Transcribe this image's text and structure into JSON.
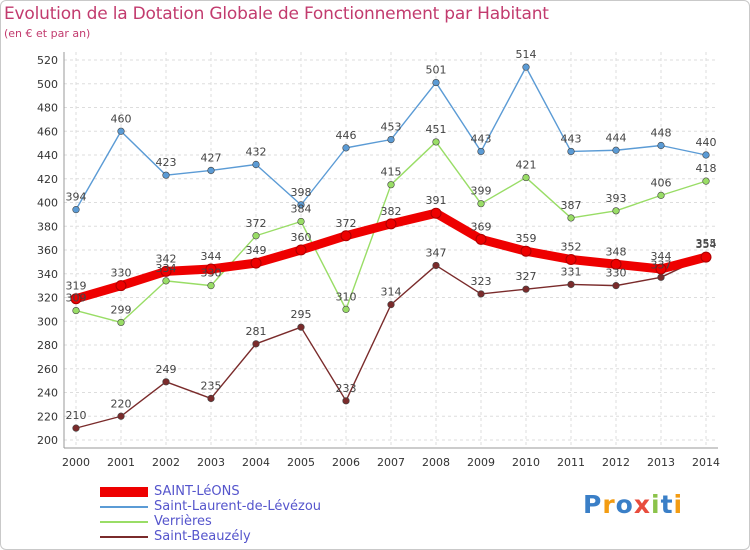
{
  "title": "Evolution de la Dotation Globale de Fonctionnement par Habitant",
  "subtitle": "(en € et par an)",
  "logo": {
    "text": "Proxiti",
    "colors": [
      "#3a7fc7",
      "#f39c12",
      "#3a7fc7",
      "#e84c3d",
      "#8bc34a",
      "#3a7fc7",
      "#f39c12"
    ]
  },
  "chart_data": {
    "type": "line",
    "x": [
      "2000",
      "2001",
      "2002",
      "2003",
      "2004",
      "2005",
      "2006",
      "2007",
      "2008",
      "2009",
      "2010",
      "2011",
      "2012",
      "2013",
      "2014"
    ],
    "ylim": [
      200,
      520
    ],
    "yticks": [
      200,
      220,
      240,
      260,
      280,
      300,
      320,
      340,
      360,
      380,
      400,
      420,
      440,
      460,
      480,
      500,
      520
    ],
    "grid": true,
    "legend_position": "bottom-left",
    "series": [
      {
        "name": "SAINT-LéONS",
        "color": "#ee0000",
        "values": [
          319,
          330,
          342,
          344,
          349,
          360,
          372,
          382,
          391,
          369,
          359,
          352,
          348,
          344,
          354
        ]
      },
      {
        "name": "Saint-Laurent-de-Lévézou",
        "color": "#5b9bd5",
        "values": [
          394,
          460,
          423,
          427,
          432,
          398,
          446,
          453,
          501,
          443,
          514,
          443,
          444,
          448,
          440
        ]
      },
      {
        "name": "Verrières",
        "color": "#99dd66",
        "values": [
          309,
          299,
          334,
          330,
          372,
          384,
          310,
          415,
          451,
          399,
          421,
          387,
          393,
          406,
          418
        ]
      },
      {
        "name": "Saint-Beauzély",
        "color": "#7a2b2b",
        "values": [
          210,
          220,
          249,
          235,
          281,
          295,
          233,
          314,
          347,
          323,
          327,
          331,
          330,
          337,
          355
        ]
      }
    ]
  }
}
